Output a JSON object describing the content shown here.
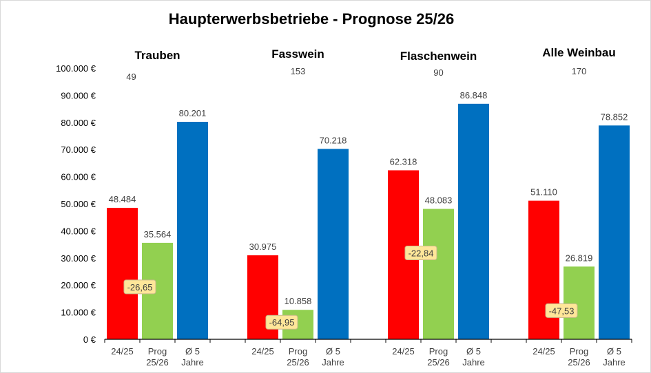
{
  "chart_data": {
    "type": "bar",
    "title": "Haupterwerbsbetriebe - Prognose 25/26",
    "xlabel": "",
    "ylabel": "",
    "ylim": [
      0,
      100000
    ],
    "y_ticks": [
      "0 €",
      "10.000 €",
      "20.000 €",
      "30.000 €",
      "40.000 €",
      "50.000 €",
      "60.000 €",
      "70.000 €",
      "80.000 €",
      "90.000 €",
      "100.000 €"
    ],
    "y_tick_values": [
      0,
      10000,
      20000,
      30000,
      40000,
      50000,
      60000,
      70000,
      80000,
      90000,
      100000
    ],
    "grid": false,
    "legend": "none",
    "categories": [
      "24/25",
      "Prog 25/26",
      "Ø 5 Jahre"
    ],
    "category_labels": [
      [
        "24/25"
      ],
      [
        "Prog",
        "25/26"
      ],
      [
        "Ø 5",
        "Jahre"
      ]
    ],
    "series_colors": [
      "#ff0000",
      "#92d050",
      "#0070c0"
    ],
    "groups": [
      {
        "name": "Trauben",
        "count": "49",
        "values": [
          48484,
          35564,
          80201
        ],
        "value_labels": [
          "48.484",
          "35.564",
          "80.201"
        ],
        "change_pct": "-26,65"
      },
      {
        "name": "Fasswein",
        "count": "153",
        "values": [
          30975,
          10858,
          70218
        ],
        "value_labels": [
          "30.975",
          "10.858",
          "70.218"
        ],
        "change_pct": "-64,95"
      },
      {
        "name": "Flaschenwein",
        "count": "90",
        "values": [
          62318,
          48083,
          86848
        ],
        "value_labels": [
          "62.318",
          "48.083",
          "86.848"
        ],
        "change_pct": "-22,84"
      },
      {
        "name": "Alle Weinbau",
        "count": "170",
        "values": [
          51110,
          26819,
          78852
        ],
        "value_labels": [
          "51.110",
          "26.819",
          "78.852"
        ],
        "change_pct": "-47,53"
      }
    ]
  },
  "colors": {
    "change_box_fill": "#ffe699",
    "change_box_border": "#c9b98a",
    "axis": "#000000"
  }
}
